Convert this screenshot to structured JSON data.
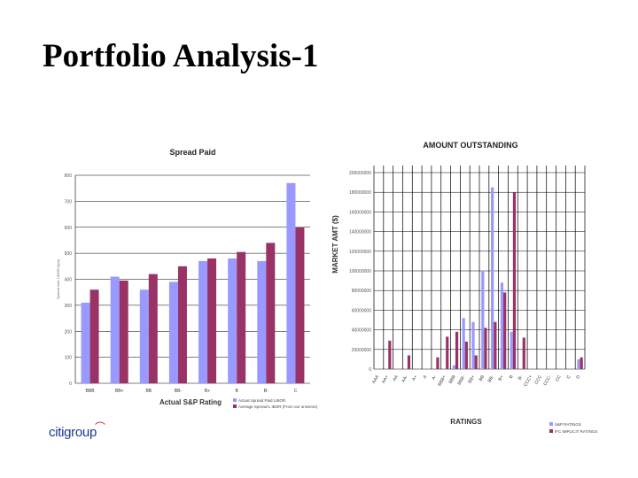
{
  "slide": {
    "title": "Portfolio Analysis-1"
  },
  "logo": {
    "text": "citigroup",
    "mark": "⌒"
  },
  "colors": {
    "series_blue": "#9999ff",
    "series_maroon": "#993366",
    "grid": "#000000"
  },
  "chart_data": [
    {
      "type": "bar",
      "title": "Spread Paid",
      "xlabel": "Actual S&P Rating",
      "ylabel": "Spread over LIBOR (bps)",
      "ylim": [
        0,
        800
      ],
      "yticks": [
        "0",
        "100",
        "200",
        "300",
        "400",
        "500",
        "600",
        "700",
        "800"
      ],
      "categories": [
        "BBB",
        "BB+",
        "BB",
        "BB-",
        "B+",
        "B",
        "B-",
        "C"
      ],
      "series": [
        {
          "name": "Actual Spread Paid LIBOR",
          "values": [
            310,
            410,
            360,
            390,
            470,
            480,
            470,
            770
          ]
        },
        {
          "name": "Average Spread-L IBOR (From our universe)",
          "values": [
            360,
            395,
            420,
            450,
            480,
            505,
            540,
            600
          ]
        }
      ],
      "legend": "bottom-right",
      "grid": true
    },
    {
      "type": "bar",
      "title": "AMOUNT OUTSTANDING",
      "xlabel": "RATINGS",
      "ylabel": "MARKET AMT ($)",
      "ylim": [
        0,
        200000000
      ],
      "yticks": [
        "0",
        "20000000",
        "40000000",
        "60000000",
        "80000000",
        "100000000",
        "120000000",
        "140000000",
        "160000000",
        "180000000",
        "200000000"
      ],
      "categories": [
        "AAA",
        "AA+",
        "AA",
        "AA-",
        "A+",
        "A",
        "A-",
        "BBB+",
        "BBB",
        "BBB-",
        "BB+",
        "BB",
        "BB-",
        "B+",
        "B",
        "B-",
        "CCC+",
        "CCC",
        "CCC-",
        "CC",
        "C",
        "D"
      ],
      "series": [
        {
          "name": "S&P RATINGS",
          "values": [
            0,
            0,
            0,
            0,
            0,
            0,
            0,
            0,
            4000000,
            52000000,
            48000000,
            100000000,
            185000000,
            88000000,
            38000000,
            0,
            0,
            0,
            0,
            0,
            0,
            10000000
          ]
        },
        {
          "name": "IFC IMPLICIT RATINGS",
          "values": [
            0,
            29000000,
            0,
            14000000,
            0,
            0,
            12000000,
            33000000,
            38000000,
            28000000,
            14000000,
            42000000,
            48000000,
            78000000,
            180000000,
            32000000,
            0,
            0,
            0,
            0,
            0,
            12000000
          ]
        }
      ],
      "legend": "bottom-right",
      "grid": true
    }
  ]
}
